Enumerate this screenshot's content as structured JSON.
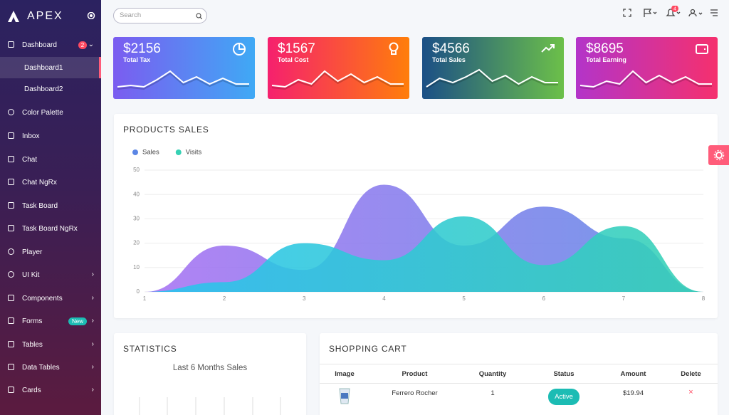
{
  "sidebar": {
    "brand": "APEX",
    "menu": [
      {
        "label": "Dashboard",
        "badge": "2",
        "submenu": [
          "Dashboard1",
          "Dashboard2"
        ]
      },
      {
        "label": "Color Palette"
      },
      {
        "label": "Inbox"
      },
      {
        "label": "Chat"
      },
      {
        "label": "Chat NgRx"
      },
      {
        "label": "Task Board"
      },
      {
        "label": "Task Board NgRx"
      },
      {
        "label": "Player"
      },
      {
        "label": "UI Kit"
      },
      {
        "label": "Components"
      },
      {
        "label": "Forms",
        "badge": "New"
      },
      {
        "label": "Tables"
      },
      {
        "label": "Data Tables"
      },
      {
        "label": "Cards"
      }
    ]
  },
  "topbar": {
    "search_placeholder": "Search",
    "notification_count": "4"
  },
  "cards": [
    {
      "value": "$2156",
      "label": "Total Tax",
      "sparkline": [
        2,
        2.5,
        2,
        4.5,
        7.5,
        3.5,
        5.5,
        3,
        5,
        3,
        3
      ]
    },
    {
      "value": "$1567",
      "label": "Total Cost",
      "sparkline": [
        2.5,
        2,
        4.5,
        3,
        7.5,
        4,
        6.5,
        3.5,
        5.5,
        3,
        3
      ]
    },
    {
      "value": "$4566",
      "label": "Total Sales",
      "sparkline": [
        2,
        5,
        3.5,
        5.5,
        8,
        4,
        6,
        3,
        5.5,
        3.5,
        3.5
      ]
    },
    {
      "value": "$8695",
      "label": "Total Earning",
      "sparkline": [
        2.5,
        2,
        4,
        3,
        7.5,
        3.5,
        6,
        3.5,
        5.5,
        3,
        3
      ]
    }
  ],
  "chart_data": {
    "type": "area",
    "title": "PRODUCTS SALES",
    "x": [
      1,
      2,
      3,
      4,
      5,
      6,
      7,
      8
    ],
    "xlim": [
      1,
      8
    ],
    "xticks": [
      1,
      2,
      3,
      4,
      5,
      6,
      7,
      8
    ],
    "ylim": [
      0,
      50
    ],
    "yticks": [
      0,
      10,
      20,
      30,
      40,
      50
    ],
    "grid": true,
    "legend": "top-left",
    "series": [
      {
        "name": "Sales",
        "color": "#5b86e5",
        "values": [
          0,
          19,
          9,
          44,
          19,
          35,
          22,
          0
        ]
      },
      {
        "name": "Visits",
        "color": "#36d1b4",
        "values": [
          0,
          4,
          20,
          13,
          31,
          11,
          27,
          0
        ]
      }
    ]
  },
  "statistics": {
    "title": "STATISTICS",
    "subtitle": "Last 6 Months Sales"
  },
  "shopping_cart": {
    "title": "SHOPPING CART",
    "columns": [
      "Image",
      "Product",
      "Quantity",
      "Status",
      "Amount",
      "Delete"
    ],
    "rows": [
      {
        "product": "Ferrero Rocher",
        "quantity": 1,
        "status": "Active",
        "amount": "$19.94",
        "delete": "×"
      }
    ]
  }
}
